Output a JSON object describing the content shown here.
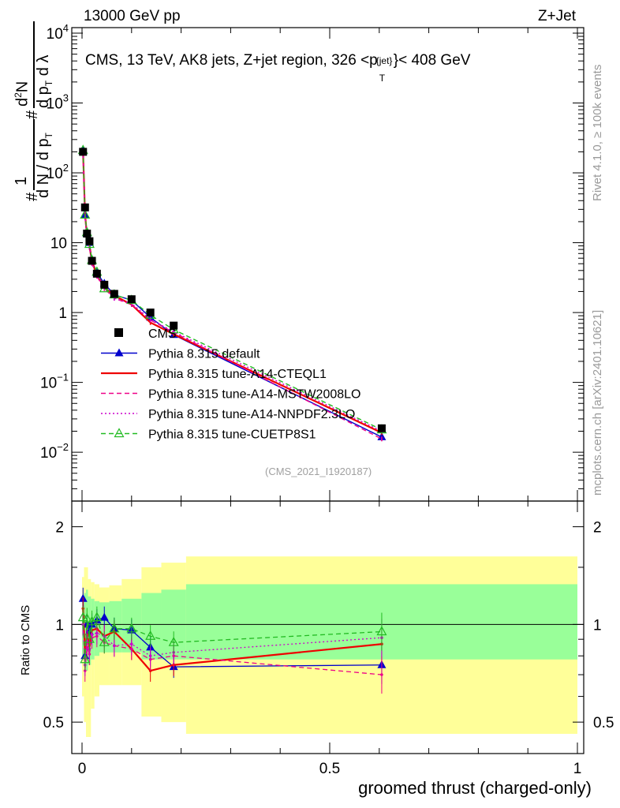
{
  "header": {
    "left": "13000 GeV pp",
    "right": "Z+Jet"
  },
  "side_labels": {
    "rivet": "Rivet 4.1.0, ≥ 100k events",
    "mcplots": "mcplots.cern.ch [arXiv:2401.10621]"
  },
  "main_panel": {
    "title": "CMS, 13 TeV, AK8 jets, Z+jet region, 326 <p",
    "title_sup": "{jet}",
    "title_sub": "T",
    "title_end": "}< 408 GeV",
    "watermark": "(CMS_2021_I1920187)",
    "ylabel": "1/N dN/dp_T d^2N/dp_T dλ",
    "yticks": [
      "10^-2",
      "10^-1",
      "1",
      "10",
      "10^2",
      "10^3",
      "10^4"
    ]
  },
  "ratio_panel": {
    "ylabel": "Ratio to CMS",
    "yticks_left": [
      "0.5",
      "1",
      "2"
    ],
    "yticks_right": [
      "0.5",
      "1",
      "2"
    ]
  },
  "xaxis": {
    "label": "groomed thrust (charged-only)",
    "ticks": [
      "0",
      "0.5",
      "1"
    ]
  },
  "chart_data": {
    "type": "line",
    "title": "CMS, 13 TeV, AK8 jets, Z+jet region, 326 < p_T^{jet} < 408 GeV",
    "xlabel": "groomed thrust (charged-only)",
    "ylabel": "1/N dN/dp_T d^2N/dp_T dλ",
    "xlim": [
      0,
      1
    ],
    "ylim": [
      0.002,
      12000
    ],
    "yscale": "log",
    "x": [
      0.002,
      0.006,
      0.01,
      0.015,
      0.02,
      0.03,
      0.045,
      0.065,
      0.1,
      0.138,
      0.185,
      0.605
    ],
    "series": [
      {
        "name": "CMS",
        "color": "#000000",
        "marker": "square",
        "values": [
          200,
          32,
          13.5,
          10.5,
          5.5,
          3.6,
          2.5,
          1.85,
          1.55,
          1.0,
          0.65,
          0.022
        ]
      },
      {
        "name": "Pythia 8.315 default",
        "color": "#0000cc",
        "marker": "triangle",
        "style": "solid",
        "values": [
          205,
          25,
          13.5,
          10,
          5.5,
          3.7,
          2.6,
          1.8,
          1.5,
          0.85,
          0.48,
          0.0165
        ]
      },
      {
        "name": "Pythia 8.315 tune-A14-CTEQL1",
        "color": "#ee0000",
        "marker": "none",
        "style": "solid",
        "values": [
          205,
          26,
          12.5,
          9,
          5.3,
          3.5,
          2.3,
          1.75,
          1.3,
          0.72,
          0.49,
          0.019
        ]
      },
      {
        "name": "Pythia 8.315 tune-A14-MSTW2008LO",
        "color": "#ee0088",
        "marker": "none",
        "style": "dashed",
        "values": [
          195,
          23,
          11.5,
          8.5,
          5.0,
          3.3,
          2.2,
          1.6,
          1.3,
          0.78,
          0.52,
          0.0155
        ]
      },
      {
        "name": "Pythia 8.315 tune-A14-NNPDF2.3LO",
        "color": "#cc00cc",
        "marker": "none",
        "style": "dotted",
        "values": [
          195,
          24,
          12,
          8.8,
          5.1,
          3.4,
          2.3,
          1.6,
          1.35,
          0.8,
          0.53,
          0.02
        ]
      },
      {
        "name": "Pythia 8.315 tune-CUETP8S1",
        "color": "#22bb22",
        "marker": "open-triangle",
        "style": "dashed",
        "values": [
          210,
          25,
          14,
          9.5,
          5.6,
          3.8,
          2.2,
          1.8,
          1.5,
          0.92,
          0.57,
          0.021
        ]
      }
    ],
    "ratio": {
      "ylabel": "Ratio to CMS",
      "ylim": [
        0.4,
        2.4
      ],
      "yscale": "log",
      "series": [
        {
          "name": "Pythia 8.315 default",
          "values": [
            1.2,
            0.8,
            1.0,
            0.95,
            1.0,
            1.03,
            1.05,
            0.97,
            0.96,
            0.85,
            0.74,
            0.75
          ]
        },
        {
          "name": "Pythia 8.315 tune-A14-CTEQL1",
          "values": [
            1.12,
            0.82,
            0.93,
            0.86,
            0.96,
            0.97,
            0.92,
            0.95,
            0.84,
            0.72,
            0.75,
            0.87
          ]
        },
        {
          "name": "Pythia 8.315 tune-A14-MSTW2008LO",
          "values": [
            1.0,
            0.72,
            0.85,
            0.81,
            0.91,
            0.92,
            0.88,
            0.86,
            0.84,
            0.78,
            0.8,
            0.7
          ]
        },
        {
          "name": "Pythia 8.315 tune-A14-NNPDF2.3LO",
          "values": [
            1.0,
            0.75,
            0.89,
            0.84,
            0.93,
            0.94,
            0.92,
            0.86,
            0.87,
            0.8,
            0.82,
            0.91
          ]
        },
        {
          "name": "Pythia 8.315 tune-CUETP8S1",
          "values": [
            1.05,
            0.78,
            1.04,
            0.9,
            1.02,
            1.05,
            0.88,
            0.97,
            0.97,
            0.92,
            0.88,
            0.95
          ]
        }
      ],
      "band_edges": [
        0,
        0.004,
        0.008,
        0.012,
        0.018,
        0.025,
        0.035,
        0.055,
        0.08,
        0.12,
        0.16,
        0.21,
        1.0
      ],
      "band_yellow_low": [
        0.6,
        0.5,
        0.45,
        0.45,
        0.55,
        0.6,
        0.65,
        0.65,
        0.65,
        0.52,
        0.5,
        0.46
      ],
      "band_yellow_high": [
        1.4,
        1.5,
        1.5,
        1.38,
        1.35,
        1.33,
        1.3,
        1.32,
        1.38,
        1.5,
        1.55,
        1.62
      ],
      "band_green_low": [
        0.8,
        0.75,
        0.72,
        0.75,
        0.78,
        0.8,
        0.82,
        0.82,
        0.82,
        0.78,
        0.78,
        0.78
      ],
      "band_green_high": [
        1.22,
        1.25,
        1.28,
        1.22,
        1.2,
        1.18,
        1.17,
        1.18,
        1.2,
        1.25,
        1.28,
        1.33
      ]
    }
  }
}
